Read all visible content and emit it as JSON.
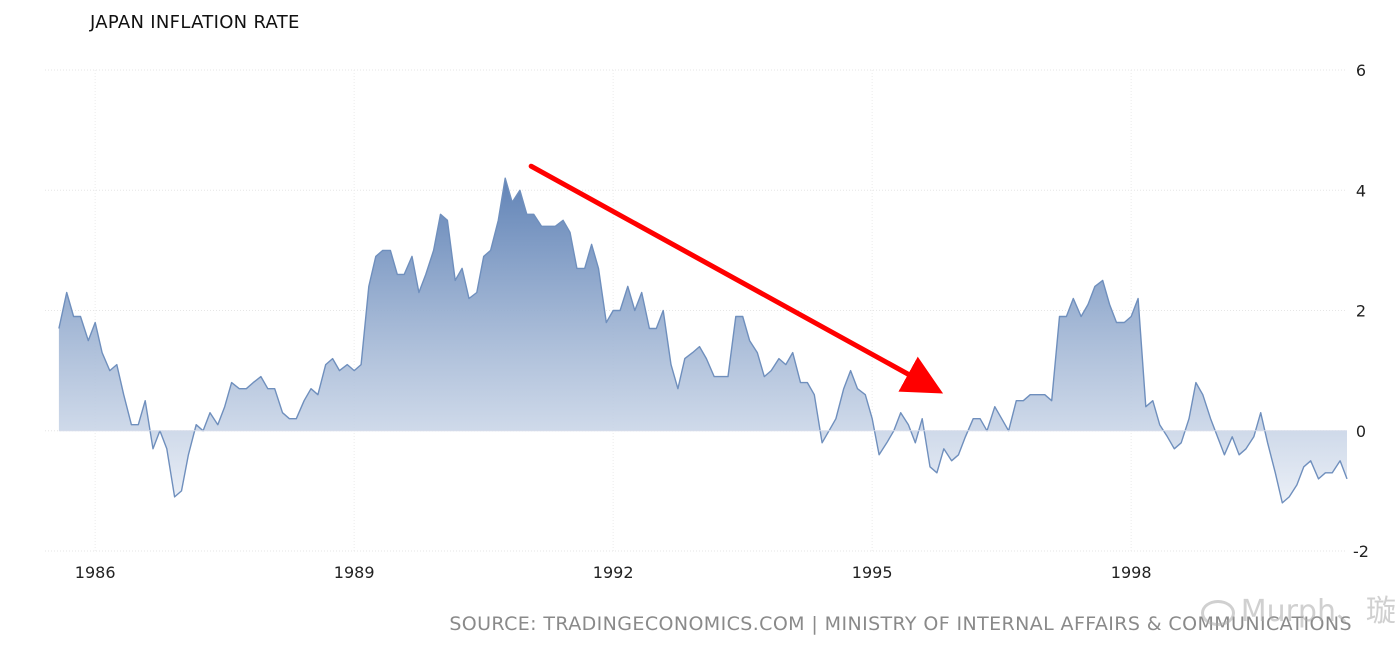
{
  "chart_data": {
    "type": "area",
    "title": "JAPAN INFLATION RATE",
    "source": "SOURCE: TRADINGECONOMICS.COM | MINISTRY OF INTERNAL AFFAIRS & COMMUNICATIONS",
    "xlim": [
      1985.5,
      2000.5
    ],
    "ylim": [
      -2,
      6
    ],
    "y_ticks": [
      6,
      4,
      2,
      0,
      -2
    ],
    "x_ticks": [
      1986,
      1989,
      1992,
      1995,
      1998
    ],
    "y_axis_side": "right",
    "grid": true,
    "series": [
      {
        "points": [
          [
            1985.58,
            1.7
          ],
          [
            1985.67,
            2.3
          ],
          [
            1985.75,
            1.9
          ],
          [
            1985.83,
            1.9
          ],
          [
            1985.92,
            1.5
          ],
          [
            1986.0,
            1.8
          ],
          [
            1986.08,
            1.3
          ],
          [
            1986.17,
            1.0
          ],
          [
            1986.25,
            1.1
          ],
          [
            1986.33,
            0.6
          ],
          [
            1986.42,
            0.1
          ],
          [
            1986.5,
            0.1
          ],
          [
            1986.58,
            0.5
          ],
          [
            1986.67,
            -0.3
          ],
          [
            1986.75,
            0.0
          ],
          [
            1986.83,
            -0.3
          ],
          [
            1986.92,
            -1.1
          ],
          [
            1987.0,
            -1.0
          ],
          [
            1987.08,
            -0.4
          ],
          [
            1987.17,
            0.1
          ],
          [
            1987.25,
            0.0
          ],
          [
            1987.33,
            0.3
          ],
          [
            1987.42,
            0.1
          ],
          [
            1987.5,
            0.4
          ],
          [
            1987.58,
            0.8
          ],
          [
            1987.67,
            0.7
          ],
          [
            1987.75,
            0.7
          ],
          [
            1987.83,
            0.8
          ],
          [
            1987.92,
            0.9
          ],
          [
            1988.0,
            0.7
          ],
          [
            1988.08,
            0.7
          ],
          [
            1988.17,
            0.3
          ],
          [
            1988.25,
            0.2
          ],
          [
            1988.33,
            0.2
          ],
          [
            1988.42,
            0.5
          ],
          [
            1988.5,
            0.7
          ],
          [
            1988.58,
            0.6
          ],
          [
            1988.67,
            1.1
          ],
          [
            1988.75,
            1.2
          ],
          [
            1988.83,
            1.0
          ],
          [
            1988.92,
            1.1
          ],
          [
            1989.0,
            1.0
          ],
          [
            1989.08,
            1.1
          ],
          [
            1989.17,
            2.4
          ],
          [
            1989.25,
            2.9
          ],
          [
            1989.33,
            3.0
          ],
          [
            1989.42,
            3.0
          ],
          [
            1989.5,
            2.6
          ],
          [
            1989.58,
            2.6
          ],
          [
            1989.67,
            2.9
          ],
          [
            1989.75,
            2.3
          ],
          [
            1989.83,
            2.6
          ],
          [
            1989.92,
            3.0
          ],
          [
            1990.0,
            3.6
          ],
          [
            1990.08,
            3.5
          ],
          [
            1990.17,
            2.5
          ],
          [
            1990.25,
            2.7
          ],
          [
            1990.33,
            2.2
          ],
          [
            1990.42,
            2.3
          ],
          [
            1990.5,
            2.9
          ],
          [
            1990.58,
            3.0
          ],
          [
            1990.67,
            3.5
          ],
          [
            1990.75,
            4.2
          ],
          [
            1990.83,
            3.8
          ],
          [
            1990.92,
            4.0
          ],
          [
            1991.0,
            3.6
          ],
          [
            1991.08,
            3.6
          ],
          [
            1991.17,
            3.4
          ],
          [
            1991.25,
            3.4
          ],
          [
            1991.33,
            3.4
          ],
          [
            1991.42,
            3.5
          ],
          [
            1991.5,
            3.3
          ],
          [
            1991.58,
            2.7
          ],
          [
            1991.67,
            2.7
          ],
          [
            1991.75,
            3.1
          ],
          [
            1991.83,
            2.7
          ],
          [
            1991.92,
            1.8
          ],
          [
            1992.0,
            2.0
          ],
          [
            1992.08,
            2.0
          ],
          [
            1992.17,
            2.4
          ],
          [
            1992.25,
            2.0
          ],
          [
            1992.33,
            2.3
          ],
          [
            1992.42,
            1.7
          ],
          [
            1992.5,
            1.7
          ],
          [
            1992.58,
            2.0
          ],
          [
            1992.67,
            1.1
          ],
          [
            1992.75,
            0.7
          ],
          [
            1992.83,
            1.2
          ],
          [
            1992.92,
            1.3
          ],
          [
            1993.0,
            1.4
          ],
          [
            1993.08,
            1.2
          ],
          [
            1993.17,
            0.9
          ],
          [
            1993.25,
            0.9
          ],
          [
            1993.33,
            0.9
          ],
          [
            1993.42,
            1.9
          ],
          [
            1993.5,
            1.9
          ],
          [
            1993.58,
            1.5
          ],
          [
            1993.67,
            1.3
          ],
          [
            1993.75,
            0.9
          ],
          [
            1993.83,
            1.0
          ],
          [
            1993.92,
            1.2
          ],
          [
            1994.0,
            1.1
          ],
          [
            1994.08,
            1.3
          ],
          [
            1994.17,
            0.8
          ],
          [
            1994.25,
            0.8
          ],
          [
            1994.33,
            0.6
          ],
          [
            1994.42,
            -0.2
          ],
          [
            1994.5,
            0.0
          ],
          [
            1994.58,
            0.2
          ],
          [
            1994.67,
            0.7
          ],
          [
            1994.75,
            1.0
          ],
          [
            1994.83,
            0.7
          ],
          [
            1994.92,
            0.6
          ],
          [
            1995.0,
            0.2
          ],
          [
            1995.08,
            -0.4
          ],
          [
            1995.17,
            -0.2
          ],
          [
            1995.25,
            0.0
          ],
          [
            1995.33,
            0.3
          ],
          [
            1995.42,
            0.1
          ],
          [
            1995.5,
            -0.2
          ],
          [
            1995.58,
            0.2
          ],
          [
            1995.67,
            -0.6
          ],
          [
            1995.75,
            -0.7
          ],
          [
            1995.83,
            -0.3
          ],
          [
            1995.92,
            -0.5
          ],
          [
            1996.0,
            -0.4
          ],
          [
            1996.08,
            -0.1
          ],
          [
            1996.17,
            0.2
          ],
          [
            1996.25,
            0.2
          ],
          [
            1996.33,
            0.0
          ],
          [
            1996.42,
            0.4
          ],
          [
            1996.5,
            0.2
          ],
          [
            1996.58,
            0.0
          ],
          [
            1996.67,
            0.5
          ],
          [
            1996.75,
            0.5
          ],
          [
            1996.83,
            0.6
          ],
          [
            1996.92,
            0.6
          ],
          [
            1997.0,
            0.6
          ],
          [
            1997.08,
            0.5
          ],
          [
            1997.17,
            1.9
          ],
          [
            1997.25,
            1.9
          ],
          [
            1997.33,
            2.2
          ],
          [
            1997.42,
            1.9
          ],
          [
            1997.5,
            2.1
          ],
          [
            1997.58,
            2.4
          ],
          [
            1997.67,
            2.5
          ],
          [
            1997.75,
            2.1
          ],
          [
            1997.83,
            1.8
          ],
          [
            1997.92,
            1.8
          ],
          [
            1998.0,
            1.9
          ],
          [
            1998.08,
            2.2
          ],
          [
            1998.17,
            0.4
          ],
          [
            1998.25,
            0.5
          ],
          [
            1998.33,
            0.1
          ],
          [
            1998.42,
            -0.1
          ],
          [
            1998.5,
            -0.3
          ],
          [
            1998.58,
            -0.2
          ],
          [
            1998.67,
            0.2
          ],
          [
            1998.75,
            0.8
          ],
          [
            1998.83,
            0.6
          ],
          [
            1998.92,
            0.2
          ],
          [
            1999.0,
            -0.1
          ],
          [
            1999.08,
            -0.4
          ],
          [
            1999.17,
            -0.1
          ],
          [
            1999.25,
            -0.4
          ],
          [
            1999.33,
            -0.3
          ],
          [
            1999.42,
            -0.1
          ],
          [
            1999.5,
            0.3
          ],
          [
            1999.58,
            -0.2
          ],
          [
            1999.67,
            -0.7
          ],
          [
            1999.75,
            -1.2
          ],
          [
            1999.83,
            -1.1
          ],
          [
            1999.92,
            -0.9
          ],
          [
            2000.0,
            -0.6
          ],
          [
            2000.08,
            -0.5
          ],
          [
            2000.17,
            -0.8
          ],
          [
            2000.25,
            -0.7
          ],
          [
            2000.33,
            -0.7
          ],
          [
            2000.42,
            -0.5
          ],
          [
            2000.5,
            -0.8
          ]
        ],
        "color": "#6f8fbd"
      }
    ],
    "annotations": [
      {
        "type": "arrow",
        "color": "#ff0000",
        "from": [
          1991.05,
          4.4
        ],
        "to": [
          1995.72,
          0.7
        ]
      }
    ]
  },
  "watermark": {
    "text": "Murph、璇",
    "icon": "weibo-icon"
  }
}
